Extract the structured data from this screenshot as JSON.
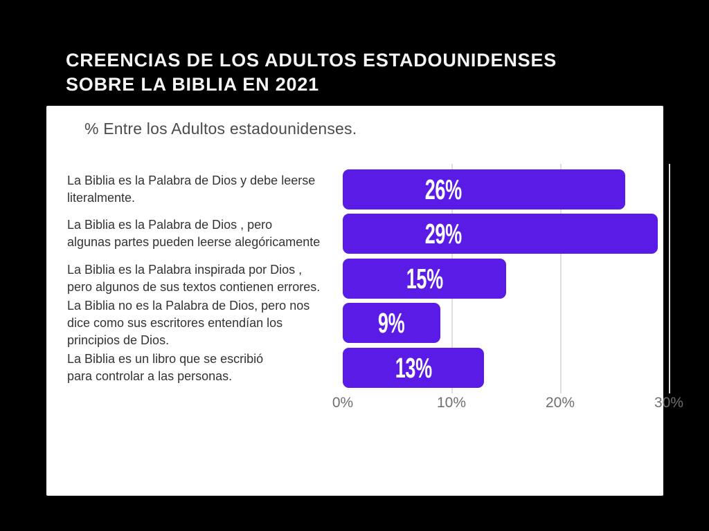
{
  "slide": {
    "background_color": "#000000",
    "title_lines": [
      "CREENCIAS DE LOS ADULTOS ESTADOUNIDENSES",
      "SOBRE LA BIBLIA EN 2021"
    ]
  },
  "chart_data": {
    "type": "bar",
    "orientation": "horizontal",
    "title": "CREENCIAS DE LOS ADULTOS ESTADOUNIDENSES SOBRE LA BIBLIA EN 2021",
    "subtitle": "% Entre los Adultos estadounidenses.",
    "categories": [
      "La Biblia es la Palabra de Dios y debe leerse literalmente.",
      "La Biblia es la Palabra de Dios , pero algunas partes pueden leerse alegóricamente",
      "La Biblia es la Palabra inspirada por Dios , pero algunos de sus textos contienen errores.",
      "La Biblia no es la Palabra de Dios, pero nos dice como sus escritores entendían los principios de Dios.",
      "La Biblia es un libro que se escribió para controlar a las personas."
    ],
    "category_lines": [
      [
        "La Biblia es la Palabra de Dios y debe leerse",
        "literalmente."
      ],
      [
        "La Biblia es la Palabra de Dios , pero",
        "algunas partes pueden leerse alegóricamente"
      ],
      [
        "La Biblia es la Palabra inspirada por Dios ,",
        "pero algunos de sus textos contienen errores."
      ],
      [
        "La Biblia no es la Palabra de Dios, pero nos",
        "dice como sus escritores entendían los",
        "principios de Dios."
      ],
      [
        "La Biblia es un libro que se escribió",
        "para controlar a las personas."
      ]
    ],
    "values": [
      26,
      29,
      15,
      9,
      13
    ],
    "value_labels": [
      "26%",
      "29%",
      "15%",
      "9%",
      "13%"
    ],
    "value_label_position": "inside",
    "x_ticks": [
      "0%",
      "10%",
      "20%",
      "30%"
    ],
    "xlim": [
      0,
      30
    ],
    "grid": "vertical",
    "legend": "none",
    "colors": {
      "bar": "#5a1be6",
      "card_background": "#ffffff",
      "page_background": "#000000",
      "title_text": "#f5f5f5",
      "subtitle_text": "#4b4b4b",
      "category_text": "#333333",
      "axis_text": "#6f6f6f",
      "gridline": "#dedede",
      "value_label_text": "#ffffff"
    }
  }
}
